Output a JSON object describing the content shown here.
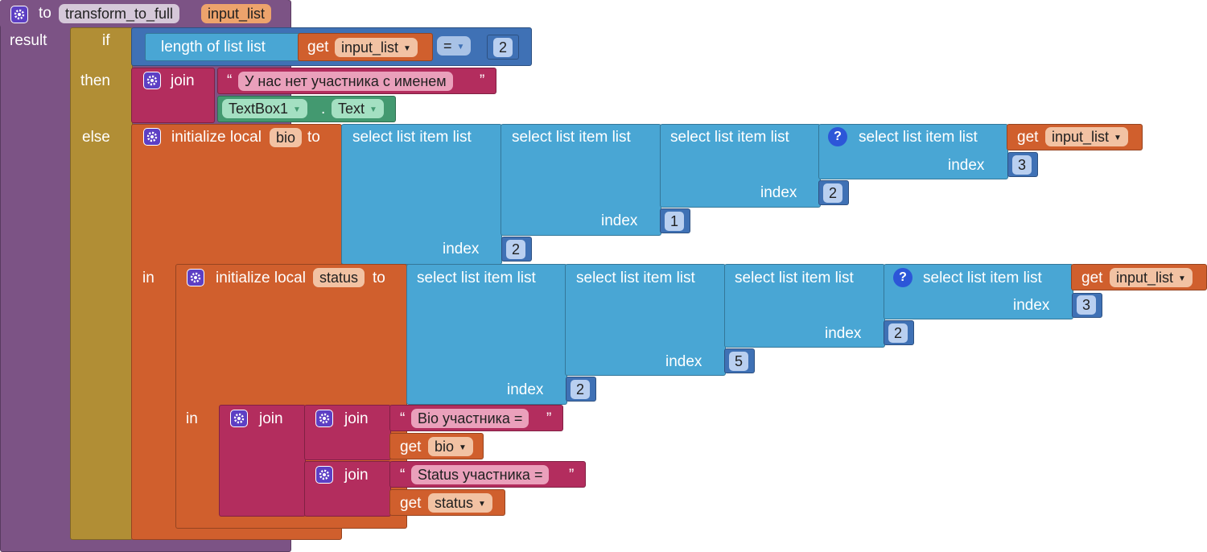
{
  "procedure": {
    "keyword_to": "to",
    "name": "transform_to_full",
    "param": "input_list",
    "result_label": "result"
  },
  "ifelse": {
    "if_label": "if",
    "then_label": "then",
    "else_label": "else"
  },
  "condition": {
    "length_label": "length of list  list",
    "get_label": "get",
    "get_var": "input_list",
    "operator": "=",
    "number": "2"
  },
  "then_branch": {
    "join_label": "join",
    "quote_open": "“",
    "quote_close": "”",
    "string": "У нас нет участника с именем",
    "component": "TextBox1",
    "dot": ".",
    "property": "Text"
  },
  "bio_local": {
    "init_label": "initialize local",
    "var": "bio",
    "to_label": "to",
    "select_label": "select list item  list",
    "index_label": "index",
    "get_label": "get",
    "get_var": "input_list",
    "help": "?",
    "indices": [
      "3",
      "2",
      "1",
      "2"
    ]
  },
  "status_local": {
    "in_label": "in",
    "init_label": "initialize local",
    "var": "status",
    "to_label": "to",
    "select_label": "select list item  list",
    "index_label": "index",
    "get_label": "get",
    "get_var": "input_list",
    "help": "?",
    "indices": [
      "3",
      "2",
      "5",
      "2"
    ]
  },
  "final": {
    "in_label": "in",
    "join_label": "join",
    "quote_open": "“",
    "quote_close": "”",
    "bio_string": "Bio участника =",
    "get_label": "get",
    "bio_var": "bio",
    "status_string": "Status участника =",
    "status_var": "status"
  },
  "colors": {
    "procedure": "#7c5385",
    "control": "#b18e35",
    "text": "#b32d5e",
    "variable": "#d05f2d",
    "list": "#49a6d4",
    "math": "#3f71b5",
    "component": "#439970"
  }
}
